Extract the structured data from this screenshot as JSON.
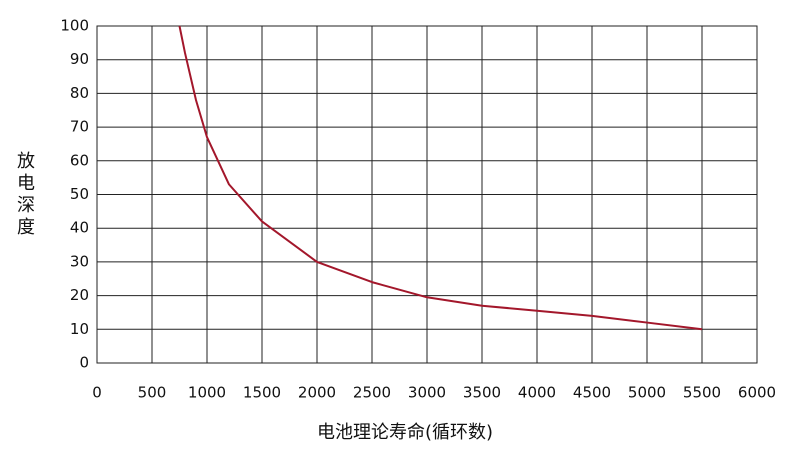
{
  "chart_data": {
    "type": "line",
    "xlabel": "电池理论寿命(循环数)",
    "ylabel": "放电深度",
    "x": [
      750,
      800,
      900,
      1000,
      1200,
      1500,
      2000,
      2500,
      3000,
      3500,
      4000,
      4500,
      5000,
      5500
    ],
    "series": [
      {
        "color": "#a3172b",
        "values": [
          100,
          92,
          78,
          67,
          53,
          42,
          30,
          24,
          19.5,
          17,
          15.5,
          14,
          12,
          10
        ]
      }
    ],
    "xlim": [
      0,
      6000
    ],
    "xticks": [
      0,
      500,
      1000,
      1500,
      2000,
      2500,
      3000,
      3500,
      4000,
      4500,
      5000,
      5500,
      6000
    ],
    "ylim": [
      0,
      100
    ],
    "yticks": [
      0,
      10,
      20,
      30,
      40,
      50,
      60,
      70,
      80,
      90,
      100
    ],
    "grid": true
  }
}
